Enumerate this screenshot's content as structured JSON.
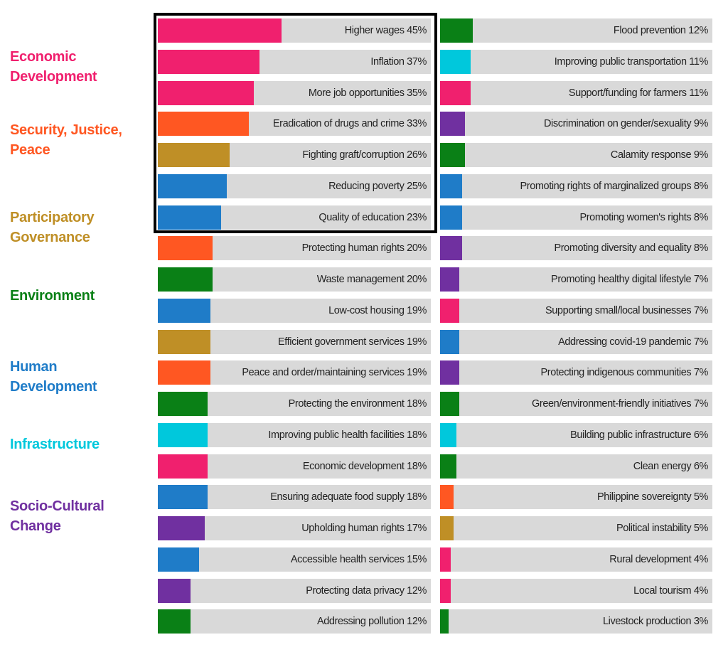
{
  "chart_data": {
    "type": "bar",
    "orientation": "horizontal",
    "xlim": [
      0,
      100
    ],
    "grid": false,
    "legend_placement": "left",
    "colors": {
      "economic": "#f0206e",
      "security": "#ff5722",
      "participatory": "#bf8f26",
      "environment": "#0a8016",
      "human": "#1f7cc8",
      "infrastructure": "#00c8dc",
      "sociocultural": "#7030a0"
    },
    "legend": [
      {
        "key": "economic",
        "lines": [
          "Economic",
          "Development"
        ]
      },
      {
        "key": "security",
        "lines": [
          "Security, Justice,",
          "Peace"
        ]
      },
      {
        "key": "participatory",
        "lines": [
          "Participatory",
          "Governance"
        ]
      },
      {
        "key": "environment",
        "lines": [
          "Environment"
        ]
      },
      {
        "key": "human",
        "lines": [
          "Human",
          "Development"
        ]
      },
      {
        "key": "infrastructure",
        "lines": [
          "Infrastructure"
        ]
      },
      {
        "key": "sociocultural",
        "lines": [
          "Socio-Cultural",
          "Change"
        ]
      }
    ],
    "highlighted_top": 7,
    "columns": [
      [
        {
          "label": "Higher wages",
          "value": 45,
          "category": "economic"
        },
        {
          "label": "Inflation",
          "value": 37,
          "category": "economic"
        },
        {
          "label": "More job opportunities",
          "value": 35,
          "category": "economic"
        },
        {
          "label": "Eradication of drugs and crime",
          "value": 33,
          "category": "security"
        },
        {
          "label": "Fighting graft/corruption",
          "value": 26,
          "category": "participatory"
        },
        {
          "label": "Reducing poverty",
          "value": 25,
          "category": "human"
        },
        {
          "label": "Quality of education",
          "value": 23,
          "category": "human"
        },
        {
          "label": "Protecting human rights",
          "value": 20,
          "category": "security"
        },
        {
          "label": "Waste management",
          "value": 20,
          "category": "environment"
        },
        {
          "label": "Low-cost housing",
          "value": 19,
          "category": "human"
        },
        {
          "label": "Efficient  government services",
          "value": 19,
          "category": "participatory"
        },
        {
          "label": "Peace and order/maintaining services",
          "value": 19,
          "category": "security"
        },
        {
          "label": "Protecting the environment",
          "value": 18,
          "category": "environment"
        },
        {
          "label": "Improving public health facilities",
          "value": 18,
          "category": "infrastructure"
        },
        {
          "label": "Economic development",
          "value": 18,
          "category": "economic"
        },
        {
          "label": "Ensuring adequate food supply",
          "value": 18,
          "category": "human"
        },
        {
          "label": "Upholding human rights",
          "value": 17,
          "category": "sociocultural"
        },
        {
          "label": "Accessible health services",
          "value": 15,
          "category": "human"
        },
        {
          "label": "Protecting data privacy",
          "value": 12,
          "category": "sociocultural"
        },
        {
          "label": "Addressing pollution",
          "value": 12,
          "category": "environment"
        }
      ],
      [
        {
          "label": "Flood prevention",
          "value": 12,
          "category": "environment"
        },
        {
          "label": "Improving public transportation",
          "value": 11,
          "category": "infrastructure"
        },
        {
          "label": "Support/funding for farmers",
          "value": 11,
          "category": "economic"
        },
        {
          "label": "Discrimination on gender/sexuality",
          "value": 9,
          "category": "sociocultural"
        },
        {
          "label": "Calamity response",
          "value": 9,
          "category": "environment"
        },
        {
          "label": "Promoting rights of marginalized groups",
          "value": 8,
          "category": "human"
        },
        {
          "label": "Promoting women's rights",
          "value": 8,
          "category": "human"
        },
        {
          "label": "Promoting diversity  and equality",
          "value": 8,
          "category": "sociocultural"
        },
        {
          "label": "Promoting healthy digital lifestyle",
          "value": 7,
          "category": "sociocultural"
        },
        {
          "label": "Supporting small/local businesses",
          "value": 7,
          "category": "economic"
        },
        {
          "label": "Addressing covid-19 pandemic",
          "value": 7,
          "category": "human"
        },
        {
          "label": "Protecting indigenous communities",
          "value": 7,
          "category": "sociocultural"
        },
        {
          "label": "Green/environment-friendly initiatives",
          "value": 7,
          "category": "environment"
        },
        {
          "label": "Building public infrastructure",
          "value": 6,
          "category": "infrastructure"
        },
        {
          "label": "Clean energy",
          "value": 6,
          "category": "environment"
        },
        {
          "label": "Philippine sovereignty",
          "value": 5,
          "category": "security"
        },
        {
          "label": "Political instability",
          "value": 5,
          "category": "participatory"
        },
        {
          "label": "Rural development",
          "value": 4,
          "category": "economic"
        },
        {
          "label": "Local tourism",
          "value": 4,
          "category": "economic"
        },
        {
          "label": "Livestock production",
          "value": 3,
          "category": "environment"
        }
      ]
    ]
  }
}
